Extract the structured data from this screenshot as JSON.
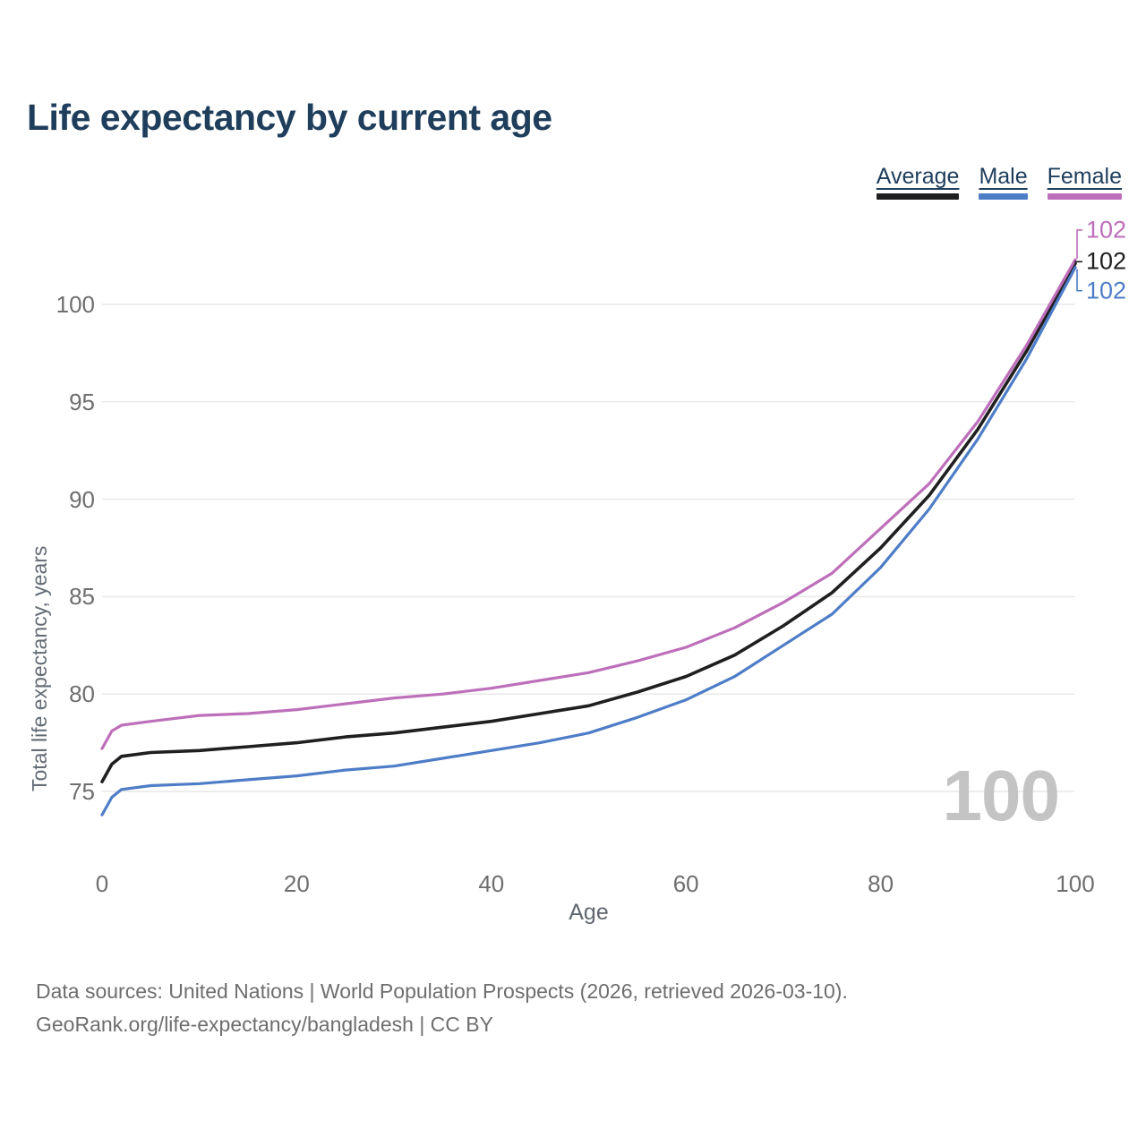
{
  "title": "Life expectancy by current age",
  "legend": [
    {
      "label": "Average",
      "color": "#1f1f1f"
    },
    {
      "label": "Male",
      "color": "#4e7dc7"
    },
    {
      "label": "Female",
      "color": "#bd6fba"
    }
  ],
  "watermark": "100",
  "chart_data": {
    "type": "line",
    "title": "Life expectancy by current age",
    "xlabel": "Age",
    "ylabel": "Total life expectancy, years",
    "xlim": [
      0,
      100
    ],
    "x_ticks": [
      0,
      20,
      40,
      60,
      80,
      100
    ],
    "y_ticks": [
      75,
      80,
      85,
      90,
      95,
      100
    ],
    "grid": "horizontal-only",
    "legend_position": "top-right",
    "x": [
      0,
      1,
      2,
      5,
      10,
      15,
      20,
      25,
      30,
      35,
      40,
      45,
      50,
      55,
      60,
      65,
      70,
      75,
      80,
      85,
      90,
      95,
      100
    ],
    "series": [
      {
        "name": "Average",
        "color": "#1f1f1f",
        "end_label": "102",
        "end_label_color": "#1f1f1f",
        "end_label_offset": -2,
        "values": [
          75.5,
          76.4,
          76.8,
          77.0,
          77.1,
          77.3,
          77.5,
          77.8,
          78.0,
          78.3,
          78.6,
          79.0,
          79.4,
          80.1,
          80.9,
          82.0,
          83.5,
          85.2,
          87.5,
          90.2,
          93.6,
          97.6,
          102.1
        ]
      },
      {
        "name": "Male",
        "color": "#4e7dc7",
        "end_label": "102",
        "end_label_color": "#4e7dc7",
        "end_label_offset": 26,
        "values": [
          73.8,
          74.7,
          75.1,
          75.3,
          75.4,
          75.6,
          75.8,
          76.1,
          76.3,
          76.7,
          77.1,
          77.5,
          78.0,
          78.8,
          79.7,
          80.9,
          82.5,
          84.1,
          86.5,
          89.5,
          93.1,
          97.2,
          101.9
        ]
      },
      {
        "name": "Female",
        "color": "#bd6fba",
        "end_label": "102",
        "end_label_color": "#bd6fba",
        "end_label_offset": -33,
        "values": [
          77.2,
          78.1,
          78.4,
          78.6,
          78.9,
          79.0,
          79.2,
          79.5,
          79.8,
          80.0,
          80.3,
          80.7,
          81.1,
          81.7,
          82.4,
          83.4,
          84.7,
          86.2,
          88.5,
          90.8,
          94.0,
          97.9,
          102.3
        ]
      }
    ]
  },
  "footer": {
    "line1": "Data sources: United Nations | World Population Prospects (2026, retrieved 2026-03-10).",
    "line2": "GeoRank.org/life-expectancy/bangladesh | CC BY"
  }
}
